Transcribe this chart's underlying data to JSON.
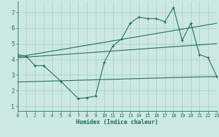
{
  "xlabel": "Humidex (Indice chaleur)",
  "bg_color": "#cce8e4",
  "grid_color": "#aacfcb",
  "line_color": "#1a6b5a",
  "line1_x": [
    0,
    1,
    2,
    3,
    5,
    7,
    8,
    9,
    10,
    11,
    12,
    13,
    14,
    15,
    16,
    17,
    18,
    19,
    20,
    21,
    22,
    23
  ],
  "line1_y": [
    4.3,
    4.2,
    3.6,
    3.6,
    2.6,
    1.5,
    1.55,
    1.65,
    3.8,
    4.85,
    5.3,
    6.3,
    6.7,
    6.6,
    6.6,
    6.4,
    7.3,
    5.2,
    6.3,
    4.3,
    4.1,
    2.9
  ],
  "line2_x": [
    0,
    23
  ],
  "line2_y": [
    4.15,
    6.3
  ],
  "line3_x": [
    0,
    23
  ],
  "line3_y": [
    4.1,
    5.0
  ],
  "line4_x": [
    0,
    19,
    23
  ],
  "line4_y": [
    2.55,
    2.85,
    2.9
  ],
  "xlim": [
    0,
    23
  ],
  "ylim": [
    0.7,
    7.7
  ],
  "yticks": [
    1,
    2,
    3,
    4,
    5,
    6,
    7
  ],
  "xticks": [
    0,
    1,
    2,
    3,
    4,
    5,
    6,
    7,
    8,
    9,
    10,
    11,
    12,
    13,
    14,
    15,
    16,
    17,
    18,
    19,
    20,
    21,
    22,
    23
  ]
}
